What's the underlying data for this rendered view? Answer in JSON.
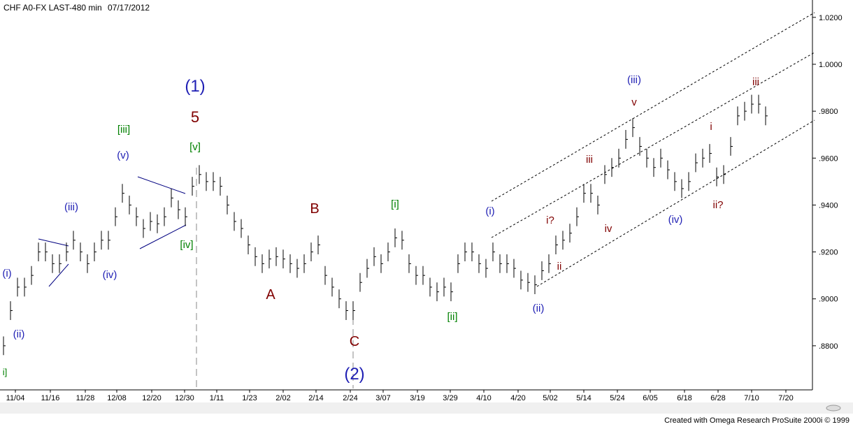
{
  "chart_data": {
    "type": "ohlc",
    "title": "CHF A0-FX LAST-480 min",
    "date": "07/17/2012",
    "footer": "Created with Omega Research ProSuite 2000i © 1999",
    "color": "#000000",
    "xlim": [
      -0.5,
      115.7
    ],
    "xticks": [
      {
        "value": 1.7,
        "label": "11/04"
      },
      {
        "value": 6.7,
        "label": "11/16"
      },
      {
        "value": 11.7,
        "label": "11/28"
      },
      {
        "value": 16.2,
        "label": "12/08"
      },
      {
        "value": 21.2,
        "label": "12/20"
      },
      {
        "value": 25.9,
        "label": "12/30"
      },
      {
        "value": 30.5,
        "label": "1/11"
      },
      {
        "value": 35.2,
        "label": "1/23"
      },
      {
        "value": 40,
        "label": "2/02"
      },
      {
        "value": 44.7,
        "label": "2/14"
      },
      {
        "value": 49.6,
        "label": "2/24"
      },
      {
        "value": 54.3,
        "label": "3/07"
      },
      {
        "value": 59.2,
        "label": "3/19"
      },
      {
        "value": 63.9,
        "label": "3/29"
      },
      {
        "value": 68.7,
        "label": "4/10"
      },
      {
        "value": 73.6,
        "label": "4/20"
      },
      {
        "value": 78.2,
        "label": "5/02"
      },
      {
        "value": 83,
        "label": "5/14"
      },
      {
        "value": 87.8,
        "label": "5/24"
      },
      {
        "value": 92.5,
        "label": "6/05"
      },
      {
        "value": 97.4,
        "label": "6/18"
      },
      {
        "value": 102.2,
        "label": "6/28"
      },
      {
        "value": 107,
        "label": "7/10"
      },
      {
        "value": 111.9,
        "label": "7/20"
      }
    ],
    "ylim": [
      0.8612,
      1.0274
    ],
    "yticks": [
      {
        "value": 0.88,
        "label": ".8800"
      },
      {
        "value": 0.9,
        "label": ".9000"
      },
      {
        "value": 0.92,
        "label": ".9200"
      },
      {
        "value": 0.94,
        "label": ".9400"
      },
      {
        "value": 0.96,
        "label": ".9600"
      },
      {
        "value": 0.98,
        "label": ".9800"
      },
      {
        "value": 1.0,
        "label": "1.0000"
      },
      {
        "value": 1.02,
        "label": "1.0200"
      }
    ],
    "high": [
      0.884,
      0.899,
      0.909,
      0.909,
      0.914,
      0.924,
      0.924,
      0.919,
      0.919,
      0.924,
      0.929,
      0.924,
      0.919,
      0.924,
      0.929,
      0.929,
      0.939,
      0.949,
      0.944,
      0.939,
      0.934,
      0.937,
      0.936,
      0.939,
      0.947,
      0.942,
      0.939,
      0.952,
      0.957,
      0.954,
      0.954,
      0.952,
      0.944,
      0.937,
      0.934,
      0.927,
      0.922,
      0.919,
      0.921,
      0.922,
      0.921,
      0.919,
      0.917,
      0.919,
      0.924,
      0.927,
      0.914,
      0.909,
      0.904,
      0.899,
      0.899,
      0.911,
      0.917,
      0.922,
      0.919,
      0.924,
      0.93,
      0.929,
      0.919,
      0.914,
      0.914,
      0.909,
      0.907,
      0.909,
      0.907,
      0.919,
      0.924,
      0.924,
      0.919,
      0.917,
      0.924,
      0.919,
      0.919,
      0.917,
      0.912,
      0.911,
      0.91,
      0.916,
      0.919,
      0.927,
      0.929,
      0.932,
      0.939,
      0.949,
      0.949,
      0.944,
      0.957,
      0.96,
      0.964,
      0.972,
      0.977,
      0.969,
      0.964,
      0.96,
      0.964,
      0.959,
      0.954,
      0.951,
      0.954,
      0.962,
      0.964,
      0.966,
      0.956,
      0.957,
      0.969,
      0.982,
      0.984,
      0.987,
      0.987,
      0.982
    ],
    "low": [
      0.876,
      0.891,
      0.901,
      0.901,
      0.906,
      0.916,
      0.916,
      0.911,
      0.911,
      0.916,
      0.921,
      0.916,
      0.911,
      0.916,
      0.921,
      0.921,
      0.931,
      0.941,
      0.936,
      0.931,
      0.926,
      0.929,
      0.928,
      0.931,
      0.939,
      0.934,
      0.931,
      0.944,
      0.949,
      0.946,
      0.946,
      0.944,
      0.936,
      0.929,
      0.926,
      0.919,
      0.914,
      0.911,
      0.913,
      0.914,
      0.913,
      0.911,
      0.909,
      0.911,
      0.916,
      0.919,
      0.906,
      0.901,
      0.896,
      0.891,
      0.891,
      0.903,
      0.909,
      0.914,
      0.911,
      0.916,
      0.922,
      0.921,
      0.911,
      0.906,
      0.906,
      0.901,
      0.899,
      0.901,
      0.899,
      0.911,
      0.916,
      0.916,
      0.911,
      0.909,
      0.916,
      0.911,
      0.911,
      0.909,
      0.904,
      0.903,
      0.902,
      0.908,
      0.911,
      0.919,
      0.921,
      0.924,
      0.931,
      0.941,
      0.941,
      0.936,
      0.949,
      0.952,
      0.956,
      0.964,
      0.969,
      0.961,
      0.956,
      0.952,
      0.956,
      0.951,
      0.946,
      0.943,
      0.946,
      0.954,
      0.956,
      0.958,
      0.948,
      0.949,
      0.961,
      0.974,
      0.976,
      0.979,
      0.979,
      0.974
    ],
    "close": [
      0.88,
      0.895,
      0.905,
      0.905,
      0.91,
      0.92,
      0.92,
      0.915,
      0.915,
      0.92,
      0.925,
      0.92,
      0.915,
      0.92,
      0.925,
      0.925,
      0.935,
      0.945,
      0.94,
      0.935,
      0.93,
      0.933,
      0.932,
      0.935,
      0.943,
      0.938,
      0.935,
      0.948,
      0.953,
      0.95,
      0.95,
      0.948,
      0.94,
      0.933,
      0.93,
      0.923,
      0.918,
      0.915,
      0.917,
      0.918,
      0.917,
      0.915,
      0.913,
      0.915,
      0.92,
      0.923,
      0.91,
      0.905,
      0.9,
      0.895,
      0.895,
      0.907,
      0.913,
      0.918,
      0.915,
      0.92,
      0.926,
      0.925,
      0.915,
      0.91,
      0.91,
      0.905,
      0.903,
      0.905,
      0.903,
      0.915,
      0.92,
      0.92,
      0.915,
      0.913,
      0.92,
      0.915,
      0.915,
      0.913,
      0.908,
      0.907,
      0.906,
      0.912,
      0.915,
      0.923,
      0.925,
      0.928,
      0.935,
      0.945,
      0.945,
      0.94,
      0.953,
      0.956,
      0.96,
      0.968,
      0.973,
      0.965,
      0.96,
      0.956,
      0.96,
      0.955,
      0.95,
      0.947,
      0.95,
      0.958,
      0.96,
      0.962,
      0.952,
      0.953,
      0.965,
      0.978,
      0.98,
      0.983,
      0.983,
      0.978
    ],
    "annotations": [
      {
        "text": "i]",
        "color": "#008000"
      },
      {
        "text": "(i)",
        "color": "#1f1fb4"
      },
      {
        "text": "(ii)",
        "color": "#1f1fb4"
      },
      {
        "text": "(iii)",
        "color": "#1f1fb4"
      },
      {
        "text": "(iv)",
        "color": "#1f1fb4"
      },
      {
        "text": "(v)",
        "color": "#1f1fb4"
      },
      {
        "text": "[iii]",
        "color": "#008000"
      },
      {
        "text": "(1)",
        "color": "#1f1fb4"
      },
      {
        "text": "5",
        "color": "#800000"
      },
      {
        "text": "[v]",
        "color": "#008000"
      },
      {
        "text": "[iv]",
        "color": "#008000"
      },
      {
        "text": "B",
        "color": "#800000"
      },
      {
        "text": "A",
        "color": "#800000"
      },
      {
        "text": "C",
        "color": "#800000"
      },
      {
        "text": "(2)",
        "color": "#1f1fb4"
      },
      {
        "text": "[i]",
        "color": "#008000"
      },
      {
        "text": "[ii]",
        "color": "#008000"
      },
      {
        "text": "(i)",
        "color": "#1f1fb4"
      },
      {
        "text": "(ii)",
        "color": "#1f1fb4"
      },
      {
        "text": "i?",
        "color": "#800000"
      },
      {
        "text": "ii",
        "color": "#800000"
      },
      {
        "text": "iii",
        "color": "#800000"
      },
      {
        "text": "iv",
        "color": "#800000"
      },
      {
        "text": "(iii)",
        "color": "#1f1fb4"
      },
      {
        "text": "v",
        "color": "#800000"
      },
      {
        "text": "(iv)",
        "color": "#1f1fb4"
      },
      {
        "text": "i",
        "color": "#800000"
      },
      {
        "text": "ii?",
        "color": "#800000"
      },
      {
        "text": "iii",
        "color": "#800000"
      }
    ]
  }
}
